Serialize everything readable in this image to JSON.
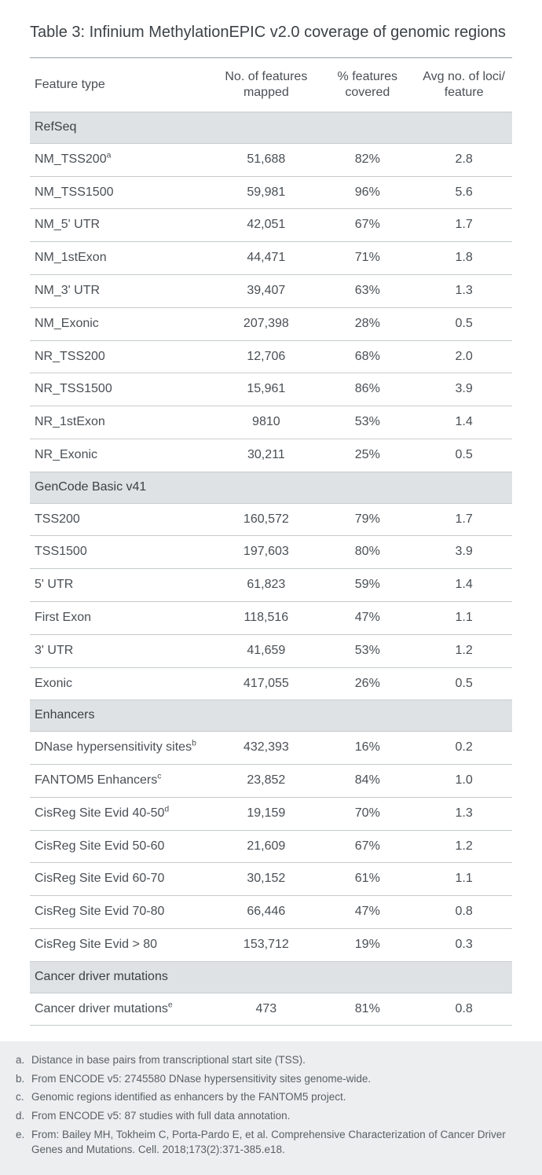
{
  "title": "Table 3: Infinium MethylationEPIC v2.0 coverage of genomic regions",
  "columns": {
    "feature": "Feature type",
    "mapped": "No. of features mapped",
    "covered": "% features covered",
    "loci": "Avg no. of loci/ feature"
  },
  "colwidths": {
    "feature": "38%",
    "mapped": "22%",
    "covered": "20%",
    "loci": "20%"
  },
  "colors": {
    "text": "#4a4f54",
    "title_text": "#3c4146",
    "border_top": "#9aa0a6",
    "border_row": "#c7cbce",
    "section_bg": "#dfe2e4",
    "foot_bg": "#eceeef",
    "foot_text": "#5a6066",
    "page_bg": "#ffffff"
  },
  "fonts": {
    "title_pt": 20,
    "body_pt": 16,
    "foot_pt": 13.5
  },
  "sections": [
    {
      "label": "RefSeq",
      "rows": [
        {
          "feature": "NM_TSS200",
          "sup": "a",
          "mapped": "51,688",
          "covered": "82%",
          "loci": "2.8"
        },
        {
          "feature": "NM_TSS1500",
          "mapped": "59,981",
          "covered": "96%",
          "loci": "5.6"
        },
        {
          "feature": "NM_5' UTR",
          "mapped": "42,051",
          "covered": "67%",
          "loci": "1.7"
        },
        {
          "feature": "NM_1stExon",
          "mapped": "44,471",
          "covered": "71%",
          "loci": "1.8"
        },
        {
          "feature": "NM_3' UTR",
          "mapped": "39,407",
          "covered": "63%",
          "loci": "1.3"
        },
        {
          "feature": "NM_Exonic",
          "mapped": "207,398",
          "covered": "28%",
          "loci": "0.5"
        },
        {
          "feature": "NR_TSS200",
          "mapped": "12,706",
          "covered": "68%",
          "loci": "2.0"
        },
        {
          "feature": "NR_TSS1500",
          "mapped": "15,961",
          "covered": "86%",
          "loci": "3.9"
        },
        {
          "feature": "NR_1stExon",
          "mapped": "9810",
          "covered": "53%",
          "loci": "1.4"
        },
        {
          "feature": "NR_Exonic",
          "mapped": "30,211",
          "covered": "25%",
          "loci": "0.5"
        }
      ]
    },
    {
      "label": "GenCode Basic v41",
      "rows": [
        {
          "feature": "TSS200",
          "mapped": "160,572",
          "covered": "79%",
          "loci": "1.7"
        },
        {
          "feature": "TSS1500",
          "mapped": "197,603",
          "covered": "80%",
          "loci": "3.9"
        },
        {
          "feature": "5' UTR",
          "mapped": "61,823",
          "covered": "59%",
          "loci": "1.4"
        },
        {
          "feature": "First Exon",
          "mapped": "118,516",
          "covered": "47%",
          "loci": "1.1"
        },
        {
          "feature": "3' UTR",
          "mapped": "41,659",
          "covered": "53%",
          "loci": "1.2"
        },
        {
          "feature": "Exonic",
          "mapped": "417,055",
          "covered": "26%",
          "loci": "0.5"
        }
      ]
    },
    {
      "label": "Enhancers",
      "rows": [
        {
          "feature": "DNase hypersensitivity sites",
          "sup": "b",
          "mapped": "432,393",
          "covered": "16%",
          "loci": "0.2"
        },
        {
          "feature": "FANTOM5 Enhancers",
          "sup": "c",
          "mapped": "23,852",
          "covered": "84%",
          "loci": "1.0"
        },
        {
          "feature": "CisReg Site Evid 40-50",
          "sup": "d",
          "mapped": "19,159",
          "covered": "70%",
          "loci": "1.3"
        },
        {
          "feature": "CisReg Site Evid 50-60",
          "mapped": "21,609",
          "covered": "67%",
          "loci": "1.2"
        },
        {
          "feature": "CisReg Site Evid 60-70",
          "mapped": "30,152",
          "covered": "61%",
          "loci": "1.1"
        },
        {
          "feature": "CisReg Site Evid 70-80",
          "mapped": "66,446",
          "covered": "47%",
          "loci": "0.8"
        },
        {
          "feature": "CisReg Site Evid > 80",
          "mapped": "153,712",
          "covered": "19%",
          "loci": "0.3"
        }
      ]
    },
    {
      "label": "Cancer driver mutations",
      "rows": [
        {
          "feature": "Cancer driver mutations",
          "sup": "e",
          "mapped": "473",
          "covered": "81%",
          "loci": "0.8"
        }
      ]
    }
  ],
  "footnotes": [
    {
      "marker": "a.",
      "text": "Distance in base pairs from transcriptional start site (TSS)."
    },
    {
      "marker": "b.",
      "text": "From ENCODE v5: 2745580 DNase hypersensitivity sites genome-wide."
    },
    {
      "marker": "c.",
      "text": "Genomic regions identified as enhancers by the FANTOM5 project."
    },
    {
      "marker": "d.",
      "text": "From ENCODE v5: 87 studies with full data annotation."
    },
    {
      "marker": "e.",
      "text": "From: Bailey MH, Tokheim C, Porta-Pardo E, et al. Comprehensive Characterization of Cancer Driver Genes and Mutations. Cell. 2018;173(2):371-385.e18."
    }
  ]
}
